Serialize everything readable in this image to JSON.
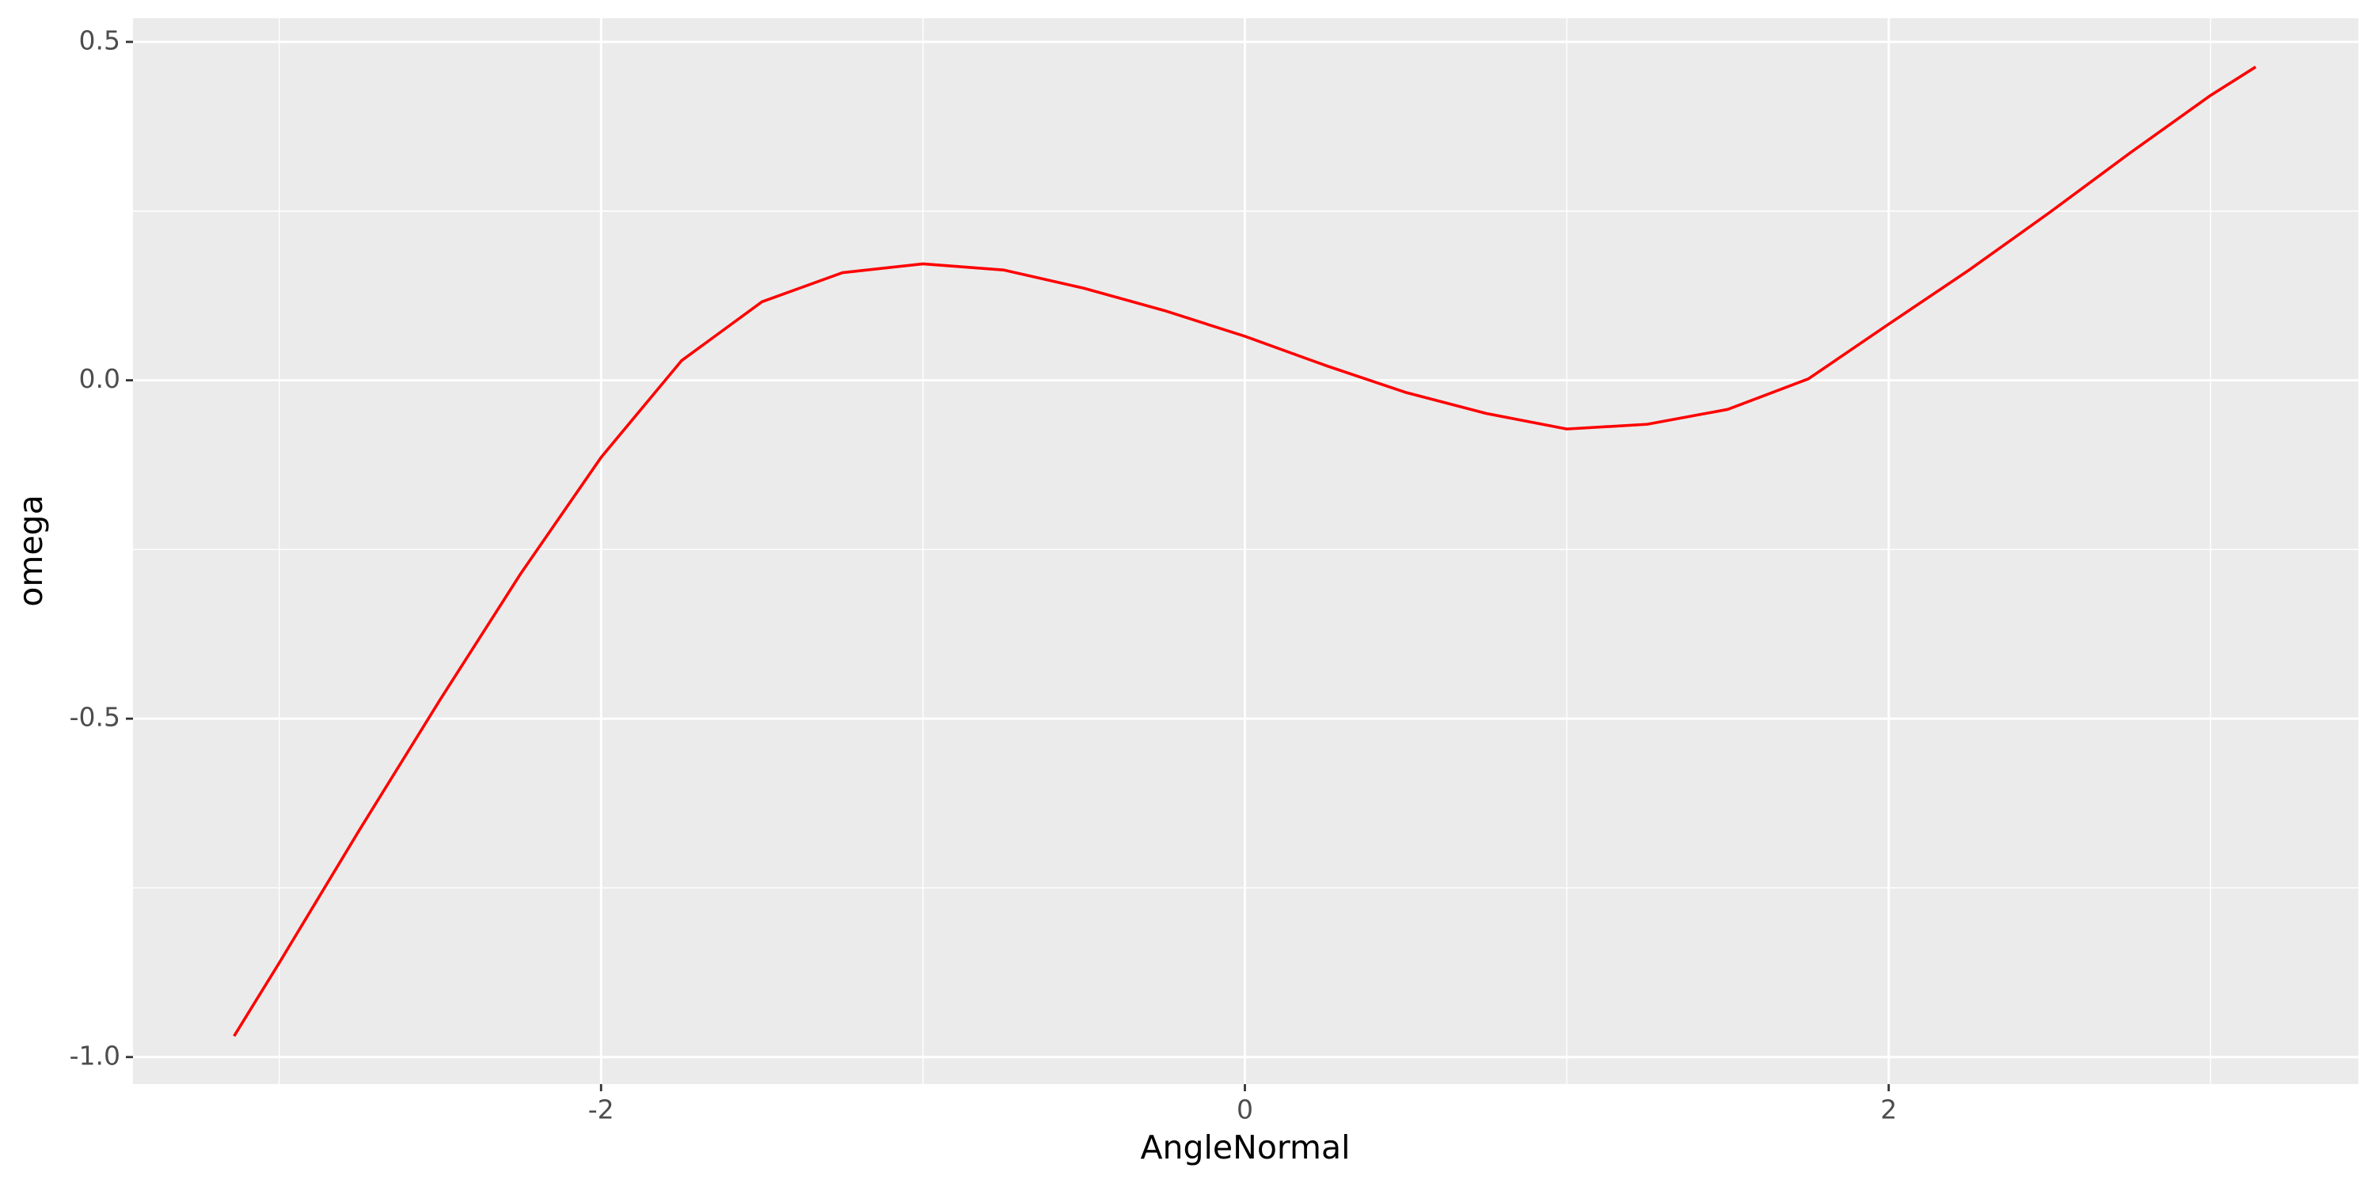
{
  "chart_data": {
    "type": "line",
    "x_label": "AngleNormal",
    "y_label": "omega",
    "x": [
      -3.14,
      -3.0,
      -2.75,
      -2.5,
      -2.25,
      -2.0,
      -1.75,
      -1.5,
      -1.25,
      -1.0,
      -0.75,
      -0.5,
      -0.25,
      0,
      0.25,
      0.5,
      0.75,
      1.0,
      1.25,
      1.5,
      1.75,
      2.0,
      2.25,
      2.5,
      2.75,
      3.0,
      3.14
    ],
    "series": [
      {
        "color": "#ff0000",
        "values": [
          -0.969,
          -0.861,
          -0.664,
          -0.472,
          -0.286,
          -0.114,
          0.029,
          0.116,
          0.159,
          0.172,
          0.163,
          0.136,
          0.103,
          0.065,
          0.022,
          -0.018,
          -0.049,
          -0.072,
          -0.065,
          -0.043,
          0.002,
          0.083,
          0.163,
          0.248,
          0.336,
          0.421,
          0.463
        ]
      }
    ],
    "xlim": [
      -3.454,
      3.459
    ],
    "ylim": [
      -1.04,
      0.535
    ],
    "xticks": [
      -2,
      0,
      2
    ],
    "yticks": [
      {
        "value": -1.0,
        "label": "-1.0"
      },
      -0.5,
      {
        "value": 0,
        "label": "0.0"
      },
      0.5
    ],
    "x_minor_ticks": [
      -3,
      -1,
      1,
      3
    ],
    "y_minor_ticks": [
      -0.75,
      -0.25,
      0.25
    ],
    "grid": true
  }
}
